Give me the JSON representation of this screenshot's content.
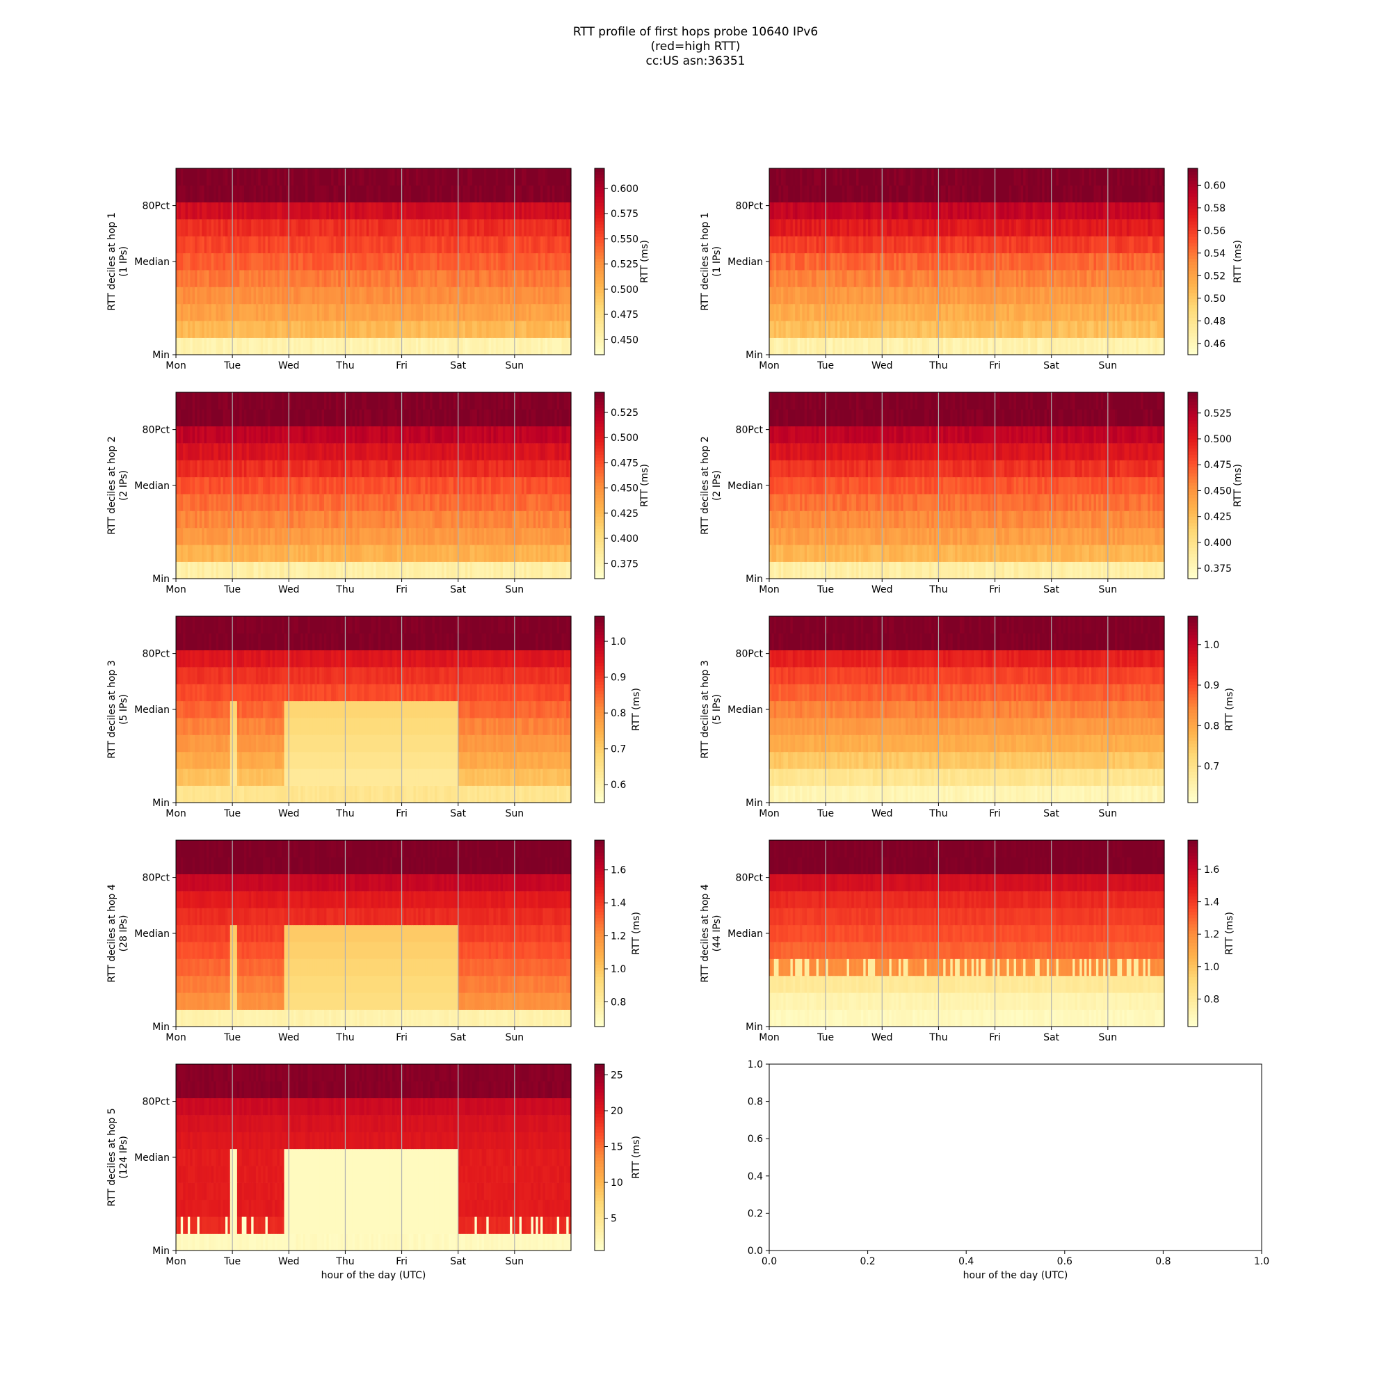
{
  "figure": {
    "title_lines": [
      "RTT profile of first hops probe 10640 IPv6",
      "(red=high RTT)",
      "cc:US asn:36351"
    ]
  },
  "chart_data": [
    {
      "type": "heatmap",
      "ylabel": [
        "RTT deciles at hop 1",
        "(1 IPs)"
      ],
      "xticks": [
        "Mon",
        "Tue",
        "Wed",
        "Thu",
        "Fri",
        "Sat",
        "Sun"
      ],
      "yticks": [
        "Min",
        "Median",
        "80Pct"
      ],
      "colorbar": {
        "label": "RTT (ms)",
        "range": [
          0.435,
          0.62
        ],
        "ticks": [
          "0.450",
          "0.475",
          "0.500",
          "0.525",
          "0.550",
          "0.575",
          "0.600"
        ]
      },
      "profile": {
        "base": [
          0.45,
          0.5,
          0.515,
          0.525,
          0.535,
          0.545,
          0.555,
          0.565,
          0.585,
          0.62,
          0.62
        ],
        "noise": 0.006
      }
    },
    {
      "type": "heatmap",
      "ylabel": [
        "RTT deciles at hop 1",
        "(1 IPs)"
      ],
      "xticks": [
        "Mon",
        "Tue",
        "Wed",
        "Thu",
        "Fri",
        "Sat",
        "Sun"
      ],
      "yticks": [
        "Min",
        "Median",
        "80Pct"
      ],
      "colorbar": {
        "label": "RTT (ms)",
        "range": [
          0.45,
          0.615
        ],
        "ticks": [
          "0.46",
          "0.48",
          "0.50",
          "0.52",
          "0.54",
          "0.56",
          "0.58",
          "0.60"
        ]
      },
      "profile": {
        "base": [
          0.465,
          0.505,
          0.515,
          0.525,
          0.535,
          0.545,
          0.56,
          0.575,
          0.59,
          0.615,
          0.615
        ],
        "noise": 0.006
      }
    },
    {
      "type": "heatmap",
      "ylabel": [
        "RTT deciles at hop 2",
        "(2 IPs)"
      ],
      "xticks": [
        "Mon",
        "Tue",
        "Wed",
        "Thu",
        "Fri",
        "Sat",
        "Sun"
      ],
      "yticks": [
        "Min",
        "Median",
        "80Pct"
      ],
      "colorbar": {
        "label": "RTT (ms)",
        "range": [
          0.36,
          0.545
        ],
        "ticks": [
          "0.375",
          "0.400",
          "0.425",
          "0.450",
          "0.475",
          "0.500",
          "0.525"
        ]
      },
      "profile": {
        "base": [
          0.38,
          0.43,
          0.445,
          0.455,
          0.465,
          0.475,
          0.49,
          0.505,
          0.52,
          0.545,
          0.545
        ],
        "noise": 0.006
      }
    },
    {
      "type": "heatmap",
      "ylabel": [
        "RTT deciles at hop 2",
        "(2 IPs)"
      ],
      "xticks": [
        "Mon",
        "Tue",
        "Wed",
        "Thu",
        "Fri",
        "Sat",
        "Sun"
      ],
      "yticks": [
        "Min",
        "Median",
        "80Pct"
      ],
      "colorbar": {
        "label": "RTT (ms)",
        "range": [
          0.365,
          0.545
        ],
        "ticks": [
          "0.375",
          "0.400",
          "0.425",
          "0.450",
          "0.475",
          "0.500",
          "0.525"
        ]
      },
      "profile": {
        "base": [
          0.385,
          0.43,
          0.445,
          0.455,
          0.465,
          0.475,
          0.49,
          0.505,
          0.52,
          0.545,
          0.545
        ],
        "noise": 0.006
      }
    },
    {
      "type": "heatmap",
      "ylabel": [
        "RTT deciles at hop 3",
        "(5 IPs)"
      ],
      "xticks": [
        "Mon",
        "Tue",
        "Wed",
        "Thu",
        "Fri",
        "Sat",
        "Sun"
      ],
      "yticks": [
        "Min",
        "Median",
        "80Pct"
      ],
      "colorbar": {
        "label": "RTT (ms)",
        "range": [
          0.55,
          1.07
        ],
        "ticks": [
          "0.6",
          "0.7",
          "0.8",
          "0.9",
          "1.0"
        ]
      },
      "profile": {
        "base": [
          0.64,
          0.72,
          0.76,
          0.79,
          0.82,
          0.85,
          0.88,
          0.91,
          0.95,
          1.07,
          1.07
        ],
        "noise": 0.012
      }
    },
    {
      "type": "heatmap",
      "ylabel": [
        "RTT deciles at hop 3",
        "(5 IPs)"
      ],
      "xticks": [
        "Mon",
        "Tue",
        "Wed",
        "Thu",
        "Fri",
        "Sat",
        "Sun"
      ],
      "yticks": [
        "Min",
        "Median",
        "80Pct"
      ],
      "colorbar": {
        "label": "RTT (ms)",
        "range": [
          0.61,
          1.07
        ],
        "ticks": [
          "0.7",
          "0.8",
          "0.9",
          "1.0"
        ]
      },
      "profile": {
        "base": [
          0.64,
          0.69,
          0.75,
          0.79,
          0.82,
          0.85,
          0.88,
          0.91,
          0.95,
          1.07,
          1.07
        ],
        "noise": 0.012
      }
    },
    {
      "type": "heatmap",
      "ylabel": [
        "RTT deciles at hop 4",
        "(28 IPs)"
      ],
      "xticks": [
        "Mon",
        "Tue",
        "Wed",
        "Thu",
        "Fri",
        "Sat",
        "Sun"
      ],
      "yticks": [
        "Min",
        "Median",
        "80Pct"
      ],
      "colorbar": {
        "label": "RTT (ms)",
        "range": [
          0.65,
          1.78
        ],
        "ticks": [
          "0.8",
          "1.0",
          "1.2",
          "1.4",
          "1.6"
        ]
      },
      "profile": {
        "base": [
          0.75,
          1.2,
          1.25,
          1.3,
          1.35,
          1.4,
          1.45,
          1.5,
          1.6,
          1.78,
          1.78
        ],
        "noise": 0.02
      }
    },
    {
      "type": "heatmap",
      "ylabel": [
        "RTT deciles at hop 4",
        "(44 IPs)"
      ],
      "xticks": [
        "Mon",
        "Tue",
        "Wed",
        "Thu",
        "Fri",
        "Sat",
        "Sun"
      ],
      "yticks": [
        "Min",
        "Median",
        "80Pct"
      ],
      "colorbar": {
        "label": "RTT (ms)",
        "range": [
          0.63,
          1.78
        ],
        "ticks": [
          "0.8",
          "1.0",
          "1.2",
          "1.4",
          "1.6"
        ]
      },
      "profile": {
        "base": [
          0.68,
          0.72,
          0.8,
          1.2,
          1.3,
          1.35,
          1.4,
          1.45,
          1.55,
          1.78,
          1.78
        ],
        "noise": 0.02
      }
    },
    {
      "type": "heatmap",
      "ylabel": [
        "RTT deciles at hop 5",
        "(124 IPs)"
      ],
      "xticks": [
        "Mon",
        "Tue",
        "Wed",
        "Thu",
        "Fri",
        "Sat",
        "Sun"
      ],
      "yticks": [
        "Min",
        "Median",
        "80Pct"
      ],
      "xlabel": "hour of the day (UTC)",
      "colorbar": {
        "label": "RTT (ms)",
        "range": [
          0.5,
          26.5
        ],
        "ticks": [
          "5",
          "10",
          "15",
          "20",
          "25"
        ]
      },
      "profile": {
        "base": [
          1.5,
          19,
          20,
          20,
          20,
          20,
          20.5,
          21,
          22,
          26,
          26
        ],
        "noise": 0.4
      }
    },
    {
      "type": "empty",
      "xlabel": "hour of the day (UTC)",
      "xticks": [
        "0.0",
        "0.2",
        "0.4",
        "0.6",
        "0.8",
        "1.0"
      ],
      "yticks": [
        "0.0",
        "0.2",
        "0.4",
        "0.6",
        "0.8",
        "1.0"
      ],
      "xlim": [
        0,
        1
      ],
      "ylim": [
        0,
        1
      ]
    }
  ]
}
